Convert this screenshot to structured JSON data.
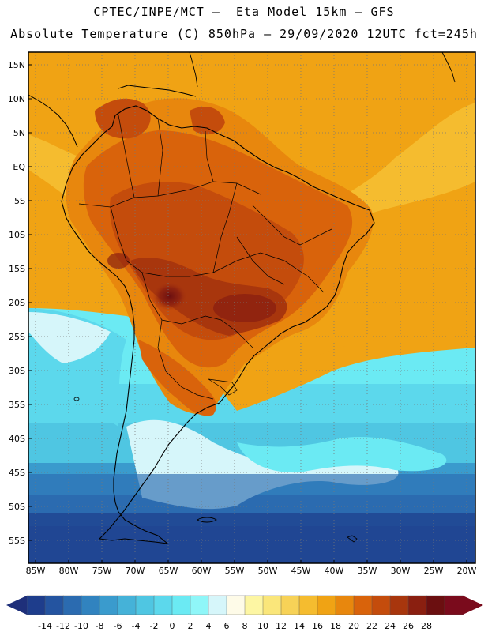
{
  "header": {
    "title_line1": "CPTEC/INPE/MCT –  Eta Model 15km – GFS",
    "title_line2": "Absolute Temperature (C) 850hPa – 29/09/2020 12UTC fct=245h"
  },
  "map": {
    "lat_labels": [
      "15N",
      "10N",
      "5N",
      "EQ",
      "5S",
      "10S",
      "15S",
      "20S",
      "25S",
      "30S",
      "35S",
      "40S",
      "45S",
      "50S",
      "55S"
    ],
    "lon_labels": [
      "85W",
      "80W",
      "75W",
      "70W",
      "65W",
      "60W",
      "55W",
      "50W",
      "45W",
      "40W",
      "35W",
      "30W",
      "25W",
      "20W"
    ],
    "lat_range": [
      17.5,
      -58
    ],
    "lon_range": [
      -86.5,
      -19.5
    ]
  },
  "colorbar": {
    "labels": [
      "-14",
      "-12",
      "-10",
      "-8",
      "-6",
      "-4",
      "-2",
      "0",
      "2",
      "4",
      "6",
      "8",
      "10",
      "12",
      "14",
      "16",
      "18",
      "20",
      "22",
      "24",
      "26",
      "28"
    ],
    "colors": [
      "#1e3d8c",
      "#2454a0",
      "#2b6bb0",
      "#3183bf",
      "#3a9bcd",
      "#45b2d8",
      "#4fc6e2",
      "#5cd8ec",
      "#6beaf3",
      "#8ff6f8",
      "#d6f6fa",
      "#fefbe8",
      "#fdf6a3",
      "#fae67a",
      "#f7d257",
      "#f5bc2f",
      "#f0a314",
      "#e8870d",
      "#d9630b",
      "#c44c0c",
      "#a8360d",
      "#8a1f10",
      "#6b0f10",
      "#7a0b1c"
    ],
    "left_arrow_color": "#1e2f7a",
    "right_arrow_color": "#7a0b1c"
  }
}
